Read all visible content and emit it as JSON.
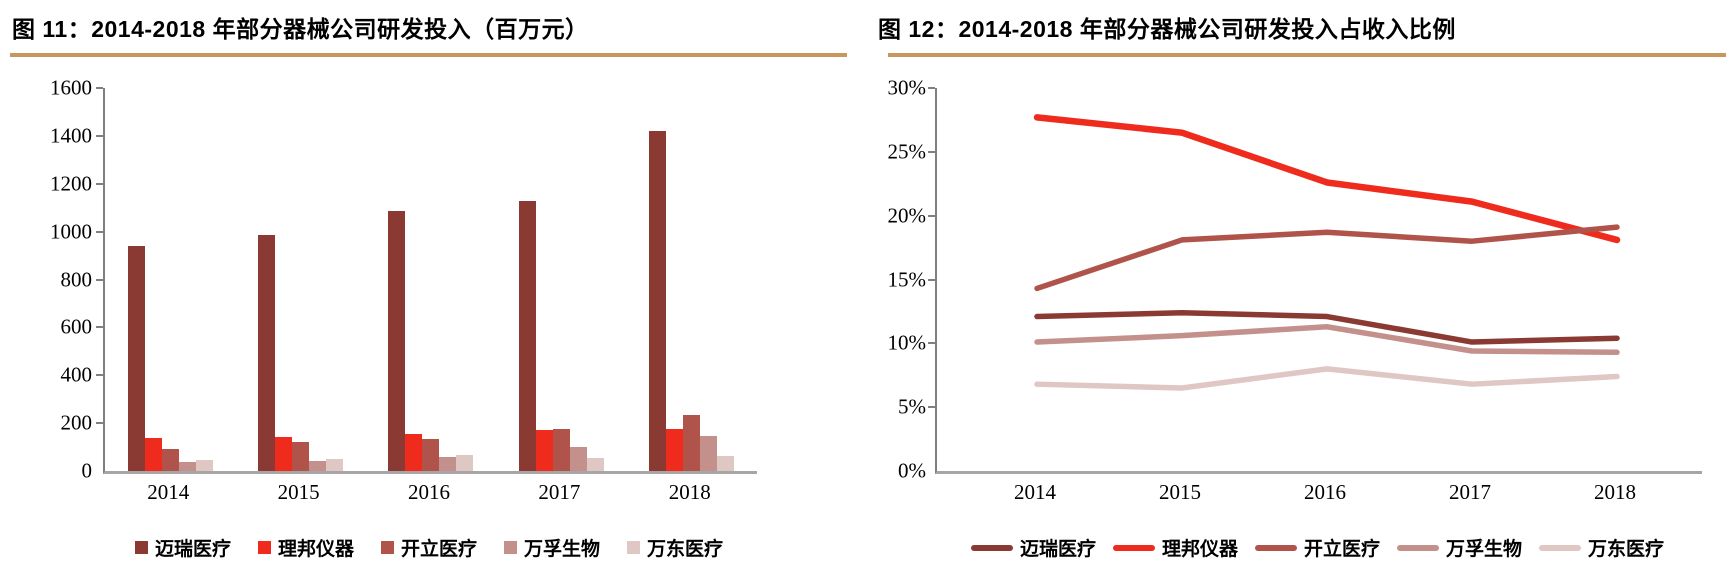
{
  "figures": [
    {
      "title": "图 11：2014-2018 年部分器械公司研发投入（百万元）"
    },
    {
      "title": "图 12：2014-2018 年部分器械公司研发投入占收入比例"
    }
  ],
  "colors": {
    "title_rule": "#C8965F",
    "axis_line": "#7F7F7F",
    "baseline": "#A6A6A6",
    "mairui": "#8B3A33",
    "libang": "#EE2B1C",
    "kaili": "#B0544B",
    "wanfu": "#C4908B",
    "wandong": "#DFC7C3"
  },
  "chart_data": [
    {
      "type": "bar",
      "title": "图 11：2014-2018 年部分器械公司研发投入（百万元）",
      "categories": [
        "2014",
        "2015",
        "2016",
        "2017",
        "2018"
      ],
      "series": [
        {
          "name": "迈瑞医疗",
          "color": "#8B3A33",
          "values": [
            940,
            985,
            1085,
            1130,
            1420
          ]
        },
        {
          "name": "理邦仪器",
          "color": "#EE2B1C",
          "values": [
            140,
            142,
            155,
            172,
            177
          ]
        },
        {
          "name": "开立医疗",
          "color": "#B0544B",
          "values": [
            90,
            122,
            133,
            175,
            232
          ]
        },
        {
          "name": "万孚生物",
          "color": "#C4908B",
          "values": [
            38,
            42,
            58,
            100,
            145
          ]
        },
        {
          "name": "万东医疗",
          "color": "#DFC7C3",
          "values": [
            48,
            52,
            66,
            56,
            62
          ]
        }
      ],
      "ylim": [
        0,
        1600
      ],
      "ytick_step": 200,
      "yticklabels": [
        "0",
        "200",
        "400",
        "600",
        "800",
        "1000",
        "1200",
        "1400",
        "1600"
      ],
      "grid": false,
      "legend_position": "bottom"
    },
    {
      "type": "line",
      "title": "图 12：2014-2018 年部分器械公司研发投入占收入比例",
      "x": [
        "2014",
        "2015",
        "2016",
        "2017",
        "2018"
      ],
      "series": [
        {
          "name": "迈瑞医疗",
          "color": "#8B3A33",
          "values": [
            12.1,
            12.4,
            12.1,
            10.1,
            10.4
          ]
        },
        {
          "name": "理邦仪器",
          "color": "#EE2B1C",
          "values": [
            27.7,
            26.5,
            22.6,
            21.1,
            18.1
          ]
        },
        {
          "name": "开立医疗",
          "color": "#B0544B",
          "values": [
            14.3,
            18.1,
            18.7,
            18.0,
            19.1
          ]
        },
        {
          "name": "万孚生物",
          "color": "#C4908B",
          "values": [
            10.1,
            10.6,
            11.3,
            9.4,
            9.3
          ]
        },
        {
          "name": "万东医疗",
          "color": "#DFC7C3",
          "values": [
            6.8,
            6.5,
            8.0,
            6.8,
            7.4
          ]
        }
      ],
      "ylim": [
        0,
        30
      ],
      "ytick_step": 5,
      "yticklabels": [
        "0%",
        "5%",
        "10%",
        "15%",
        "20%",
        "25%",
        "30%"
      ],
      "grid": false,
      "legend_position": "bottom"
    }
  ]
}
